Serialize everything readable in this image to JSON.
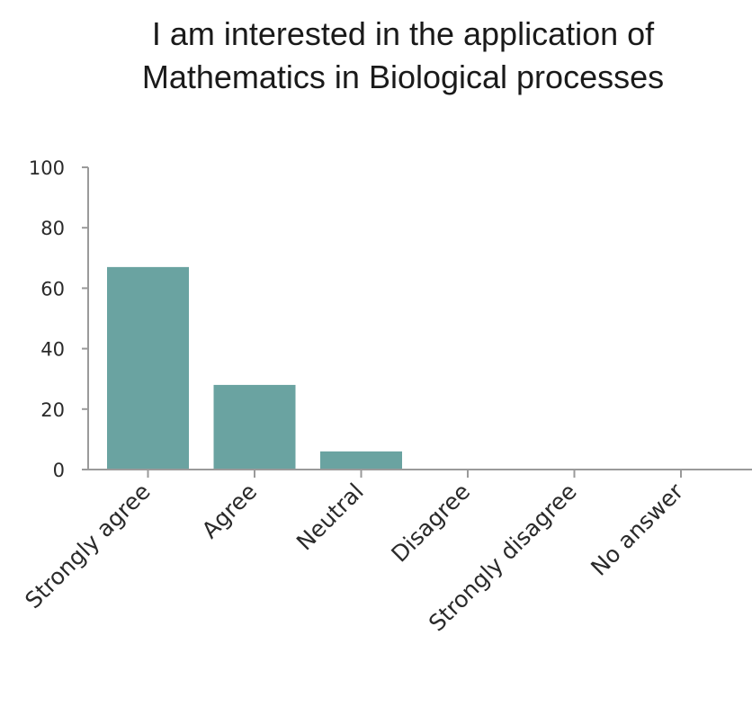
{
  "chart_data": {
    "type": "bar",
    "title": [
      "I am interested in the application of",
      "Mathematics in Biological processes"
    ],
    "categories": [
      "Strongly agree",
      "Agree",
      "Neutral",
      "Disagree",
      "Strongly disagree",
      "No answer"
    ],
    "values": [
      67,
      28,
      6,
      0,
      0,
      0
    ],
    "ylim": [
      0,
      100
    ],
    "yticks": [
      "0",
      "20",
      "40",
      "60",
      "80",
      "100"
    ],
    "xlabel": "",
    "ylabel": "",
    "grid": false,
    "bar_color": "#6aa3a1",
    "axis_color": "#9a9a9a"
  }
}
